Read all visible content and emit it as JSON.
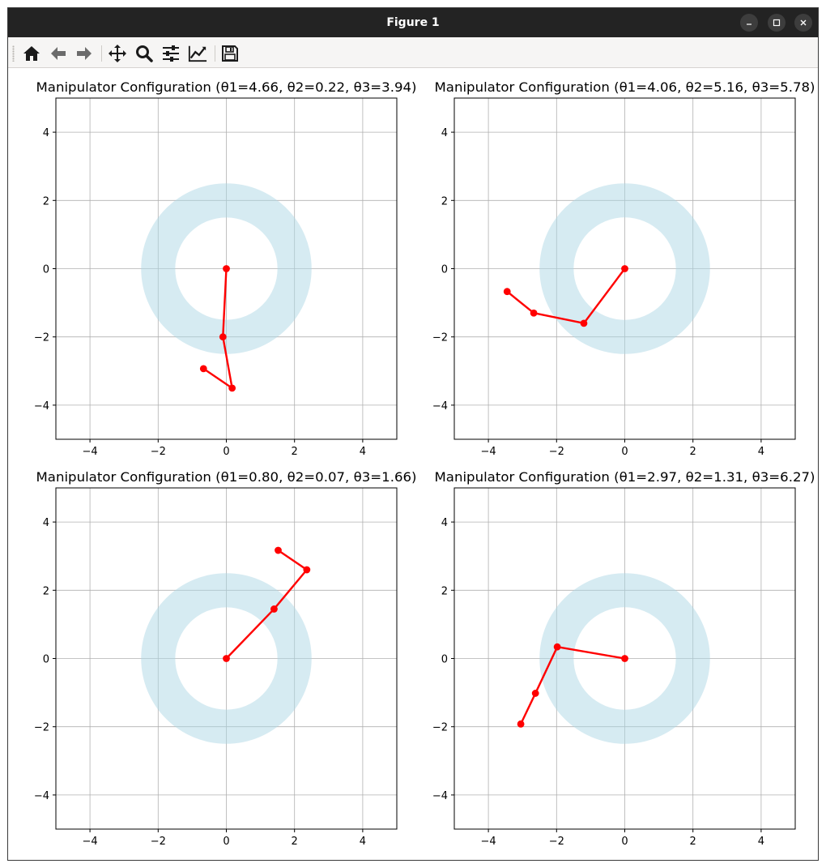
{
  "window": {
    "title": "Figure 1"
  },
  "toolbar": {
    "items": [
      {
        "name": "home-icon",
        "tooltip": "Home"
      },
      {
        "name": "back-icon",
        "tooltip": "Back"
      },
      {
        "name": "forward-icon",
        "tooltip": "Forward"
      },
      {
        "name": "pan-icon",
        "tooltip": "Pan"
      },
      {
        "name": "zoom-icon",
        "tooltip": "Zoom"
      },
      {
        "name": "subplots-icon",
        "tooltip": "Subplots"
      },
      {
        "name": "customize-icon",
        "tooltip": "Customize"
      },
      {
        "name": "save-icon",
        "tooltip": "Save"
      }
    ]
  },
  "colors": {
    "workspace": "#add8e6",
    "arm": "#ff0000",
    "grid": "#b0b0b0",
    "titlebar": "#232323",
    "toolbar": "#f6f5f4"
  },
  "chart_data": [
    {
      "type": "line",
      "title": "Manipulator Configuration (θ1=4.66, θ2=0.22, θ3=3.94)",
      "xlim": [
        -5,
        5
      ],
      "ylim": [
        -5,
        5
      ],
      "xticks": [
        -4,
        -2,
        0,
        2,
        4
      ],
      "yticks": [
        -4,
        -2,
        0,
        2,
        4
      ],
      "grid": true,
      "workspace_annulus": {
        "inner_radius": 1.5,
        "outer_radius": 2.5
      },
      "joints": [
        [
          0,
          0
        ],
        [
          -0.1,
          -2.0
        ],
        [
          0.17,
          -3.5
        ],
        [
          -0.67,
          -2.93
        ]
      ]
    },
    {
      "type": "line",
      "title": "Manipulator Configuration (θ1=4.06, θ2=5.16, θ3=5.78)",
      "xlim": [
        -5,
        5
      ],
      "ylim": [
        -5,
        5
      ],
      "xticks": [
        -4,
        -2,
        0,
        2,
        4
      ],
      "yticks": [
        -4,
        -2,
        0,
        2,
        4
      ],
      "grid": true,
      "workspace_annulus": {
        "inner_radius": 1.5,
        "outer_radius": 2.5
      },
      "joints": [
        [
          0,
          0
        ],
        [
          -1.2,
          -1.6
        ],
        [
          -2.67,
          -1.3
        ],
        [
          -3.45,
          -0.67
        ]
      ]
    },
    {
      "type": "line",
      "title": "Manipulator Configuration (θ1=0.80, θ2=0.07, θ3=1.66)",
      "xlim": [
        -5,
        5
      ],
      "ylim": [
        -5,
        5
      ],
      "xticks": [
        -4,
        -2,
        0,
        2,
        4
      ],
      "yticks": [
        -4,
        -2,
        0,
        2,
        4
      ],
      "grid": true,
      "workspace_annulus": {
        "inner_radius": 1.5,
        "outer_radius": 2.5
      },
      "joints": [
        [
          0,
          0
        ],
        [
          1.4,
          1.45
        ],
        [
          2.36,
          2.6
        ],
        [
          1.52,
          3.17
        ]
      ]
    },
    {
      "type": "line",
      "title": "Manipulator Configuration (θ1=2.97, θ2=1.31, θ3=6.27)",
      "xlim": [
        -5,
        5
      ],
      "ylim": [
        -5,
        5
      ],
      "xticks": [
        -4,
        -2,
        0,
        2,
        4
      ],
      "yticks": [
        -4,
        -2,
        0,
        2,
        4
      ],
      "grid": true,
      "workspace_annulus": {
        "inner_radius": 1.5,
        "outer_radius": 2.5
      },
      "joints": [
        [
          0,
          0
        ],
        [
          -1.98,
          0.34
        ],
        [
          -2.62,
          -1.02
        ],
        [
          -3.05,
          -1.92
        ]
      ]
    }
  ]
}
